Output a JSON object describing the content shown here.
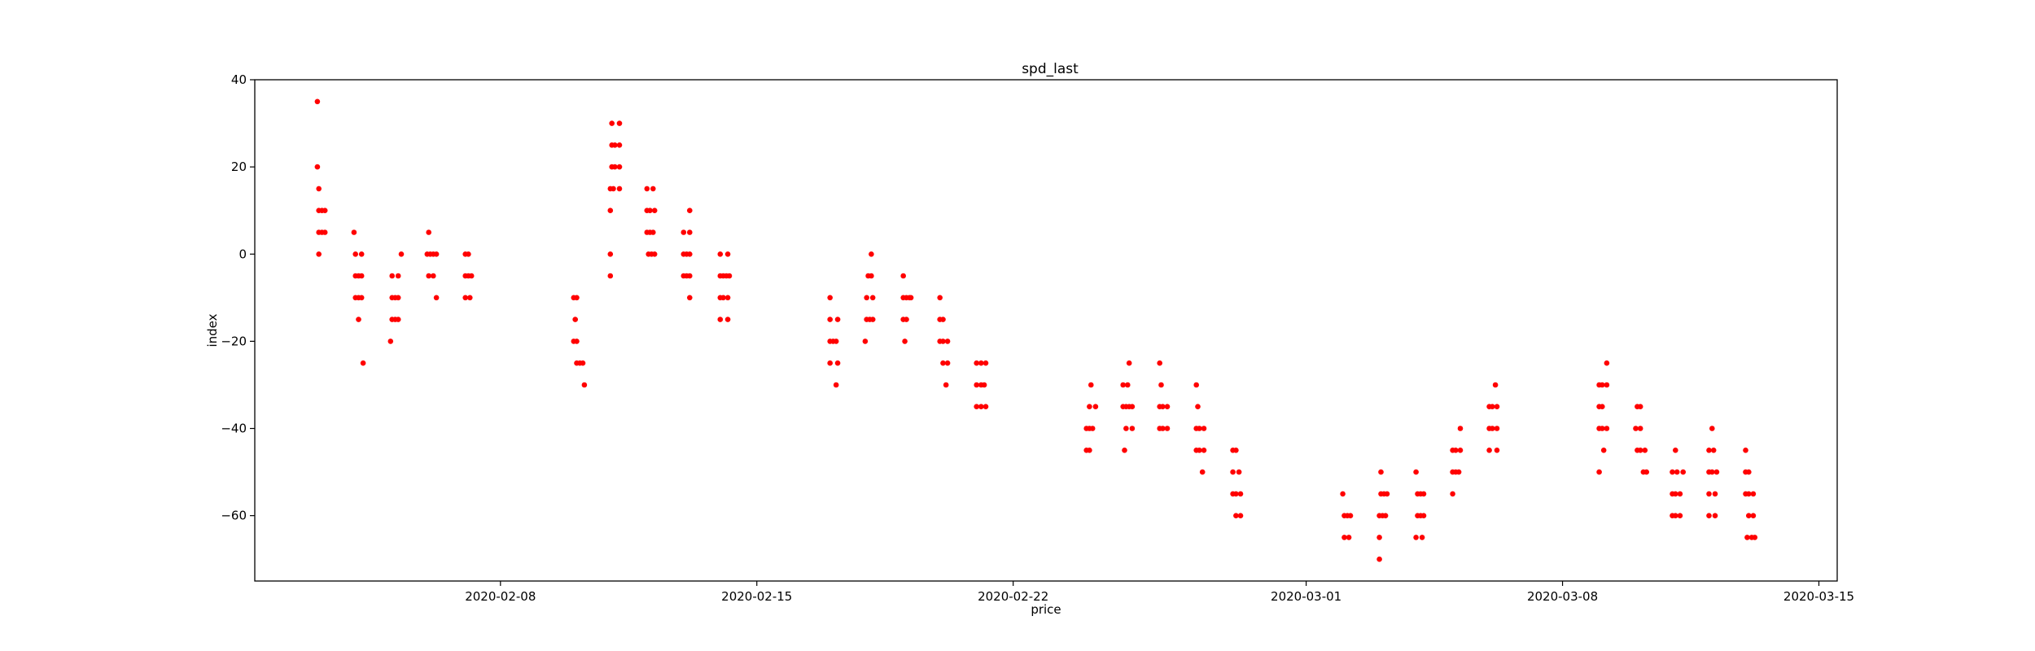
{
  "chart_data": {
    "type": "scatter",
    "title": "spd_last",
    "xlabel": "price",
    "ylabel": "index",
    "x_type": "date",
    "xlim": [
      "2020-02-01T07:00",
      "2020-03-15T12:00"
    ],
    "ylim": [
      -75,
      40
    ],
    "x_ticks": [
      "2020-02-08",
      "2020-02-15",
      "2020-02-22",
      "2020-03-01",
      "2020-03-08",
      "2020-03-15"
    ],
    "y_ticks": [
      40,
      20,
      0,
      -20,
      -40,
      -60
    ],
    "grid": false,
    "legend": "none",
    "marker_color": "#ff0000",
    "points": [
      {
        "x": "2020-02-03T00:00",
        "y": 35
      },
      {
        "x": "2020-02-03T00:00",
        "y": 20
      },
      {
        "x": "2020-02-03T01:00",
        "y": 15
      },
      {
        "x": "2020-02-03T01:00",
        "y": 10
      },
      {
        "x": "2020-02-03T03:00",
        "y": 10
      },
      {
        "x": "2020-02-03T05:00",
        "y": 10
      },
      {
        "x": "2020-02-03T01:00",
        "y": 5
      },
      {
        "x": "2020-02-03T03:00",
        "y": 5
      },
      {
        "x": "2020-02-03T05:00",
        "y": 5
      },
      {
        "x": "2020-02-03T01:00",
        "y": 0
      },
      {
        "x": "2020-02-04T00:00",
        "y": 5
      },
      {
        "x": "2020-02-04T01:00",
        "y": 0
      },
      {
        "x": "2020-02-04T05:00",
        "y": 0
      },
      {
        "x": "2020-02-04T01:00",
        "y": -5
      },
      {
        "x": "2020-02-04T03:00",
        "y": -5
      },
      {
        "x": "2020-02-04T05:00",
        "y": -5
      },
      {
        "x": "2020-02-04T01:00",
        "y": -10
      },
      {
        "x": "2020-02-04T03:00",
        "y": -10
      },
      {
        "x": "2020-02-04T05:00",
        "y": -10
      },
      {
        "x": "2020-02-04T03:00",
        "y": -15
      },
      {
        "x": "2020-02-04T06:00",
        "y": -25
      },
      {
        "x": "2020-02-05T01:00",
        "y": -5
      },
      {
        "x": "2020-02-05T05:00",
        "y": -5
      },
      {
        "x": "2020-02-05T07:00",
        "y": 0
      },
      {
        "x": "2020-02-05T01:00",
        "y": -10
      },
      {
        "x": "2020-02-05T03:00",
        "y": -10
      },
      {
        "x": "2020-02-05T05:00",
        "y": -10
      },
      {
        "x": "2020-02-05T01:00",
        "y": -15
      },
      {
        "x": "2020-02-05T03:00",
        "y": -15
      },
      {
        "x": "2020-02-05T05:00",
        "y": -15
      },
      {
        "x": "2020-02-05T00:00",
        "y": -20
      },
      {
        "x": "2020-02-06T01:00",
        "y": 5
      },
      {
        "x": "2020-02-06T00:00",
        "y": 0
      },
      {
        "x": "2020-02-06T02:00",
        "y": 0
      },
      {
        "x": "2020-02-06T04:00",
        "y": 0
      },
      {
        "x": "2020-02-06T06:00",
        "y": 0
      },
      {
        "x": "2020-02-06T01:00",
        "y": -5
      },
      {
        "x": "2020-02-06T04:00",
        "y": -5
      },
      {
        "x": "2020-02-06T06:00",
        "y": -10
      },
      {
        "x": "2020-02-07T01:00",
        "y": 0
      },
      {
        "x": "2020-02-07T03:00",
        "y": 0
      },
      {
        "x": "2020-02-07T01:00",
        "y": -5
      },
      {
        "x": "2020-02-07T03:00",
        "y": -5
      },
      {
        "x": "2020-02-07T05:00",
        "y": -5
      },
      {
        "x": "2020-02-07T01:00",
        "y": -10
      },
      {
        "x": "2020-02-07T04:00",
        "y": -10
      },
      {
        "x": "2020-02-10T00:00",
        "y": -10
      },
      {
        "x": "2020-02-10T02:00",
        "y": -10
      },
      {
        "x": "2020-02-10T01:00",
        "y": -15
      },
      {
        "x": "2020-02-10T00:00",
        "y": -20
      },
      {
        "x": "2020-02-10T02:00",
        "y": -20
      },
      {
        "x": "2020-02-10T02:00",
        "y": -25
      },
      {
        "x": "2020-02-10T04:00",
        "y": -25
      },
      {
        "x": "2020-02-10T06:00",
        "y": -25
      },
      {
        "x": "2020-02-10T07:00",
        "y": -30
      },
      {
        "x": "2020-02-11T01:00",
        "y": 30
      },
      {
        "x": "2020-02-11T06:00",
        "y": 30
      },
      {
        "x": "2020-02-11T01:00",
        "y": 25
      },
      {
        "x": "2020-02-11T03:00",
        "y": 25
      },
      {
        "x": "2020-02-11T06:00",
        "y": 25
      },
      {
        "x": "2020-02-11T01:00",
        "y": 20
      },
      {
        "x": "2020-02-11T03:00",
        "y": 20
      },
      {
        "x": "2020-02-11T06:00",
        "y": 20
      },
      {
        "x": "2020-02-11T00:00",
        "y": 15
      },
      {
        "x": "2020-02-11T02:00",
        "y": 15
      },
      {
        "x": "2020-02-11T06:00",
        "y": 15
      },
      {
        "x": "2020-02-11T00:00",
        "y": 10
      },
      {
        "x": "2020-02-11T00:00",
        "y": 0
      },
      {
        "x": "2020-02-11T00:00",
        "y": -5
      },
      {
        "x": "2020-02-12T00:00",
        "y": 15
      },
      {
        "x": "2020-02-12T04:00",
        "y": 15
      },
      {
        "x": "2020-02-12T00:00",
        "y": 10
      },
      {
        "x": "2020-02-12T02:00",
        "y": 10
      },
      {
        "x": "2020-02-12T05:00",
        "y": 10
      },
      {
        "x": "2020-02-12T00:00",
        "y": 5
      },
      {
        "x": "2020-02-12T02:00",
        "y": 5
      },
      {
        "x": "2020-02-12T04:00",
        "y": 5
      },
      {
        "x": "2020-02-12T01:00",
        "y": 0
      },
      {
        "x": "2020-02-12T03:00",
        "y": 0
      },
      {
        "x": "2020-02-12T05:00",
        "y": 0
      },
      {
        "x": "2020-02-13T00:00",
        "y": 5
      },
      {
        "x": "2020-02-13T04:00",
        "y": 5
      },
      {
        "x": "2020-02-13T04:00",
        "y": 10
      },
      {
        "x": "2020-02-13T00:00",
        "y": 0
      },
      {
        "x": "2020-02-13T02:00",
        "y": 0
      },
      {
        "x": "2020-02-13T04:00",
        "y": 0
      },
      {
        "x": "2020-02-13T00:00",
        "y": -5
      },
      {
        "x": "2020-02-13T02:00",
        "y": -5
      },
      {
        "x": "2020-02-13T04:00",
        "y": -5
      },
      {
        "x": "2020-02-13T04:00",
        "y": -10
      },
      {
        "x": "2020-02-14T00:00",
        "y": 0
      },
      {
        "x": "2020-02-14T05:00",
        "y": 0
      },
      {
        "x": "2020-02-14T00:00",
        "y": -5
      },
      {
        "x": "2020-02-14T02:00",
        "y": -5
      },
      {
        "x": "2020-02-14T04:00",
        "y": -5
      },
      {
        "x": "2020-02-14T06:00",
        "y": -5
      },
      {
        "x": "2020-02-14T00:00",
        "y": -10
      },
      {
        "x": "2020-02-14T02:00",
        "y": -10
      },
      {
        "x": "2020-02-14T05:00",
        "y": -10
      },
      {
        "x": "2020-02-14T00:00",
        "y": -15
      },
      {
        "x": "2020-02-14T05:00",
        "y": -15
      },
      {
        "x": "2020-02-17T00:00",
        "y": -10
      },
      {
        "x": "2020-02-17T00:00",
        "y": -15
      },
      {
        "x": "2020-02-17T05:00",
        "y": -15
      },
      {
        "x": "2020-02-17T00:00",
        "y": -20
      },
      {
        "x": "2020-02-17T02:00",
        "y": -20
      },
      {
        "x": "2020-02-17T04:00",
        "y": -20
      },
      {
        "x": "2020-02-17T00:00",
        "y": -25
      },
      {
        "x": "2020-02-17T05:00",
        "y": -25
      },
      {
        "x": "2020-02-17T04:00",
        "y": -30
      },
      {
        "x": "2020-02-18T03:00",
        "y": 0
      },
      {
        "x": "2020-02-18T01:00",
        "y": -5
      },
      {
        "x": "2020-02-18T03:00",
        "y": -5
      },
      {
        "x": "2020-02-18T00:00",
        "y": -10
      },
      {
        "x": "2020-02-18T04:00",
        "y": -10
      },
      {
        "x": "2020-02-18T00:00",
        "y": -15
      },
      {
        "x": "2020-02-18T02:00",
        "y": -15
      },
      {
        "x": "2020-02-18T04:00",
        "y": -15
      },
      {
        "x": "2020-02-17T23:00",
        "y": -20
      },
      {
        "x": "2020-02-19T00:00",
        "y": -5
      },
      {
        "x": "2020-02-19T00:00",
        "y": -10
      },
      {
        "x": "2020-02-19T02:00",
        "y": -10
      },
      {
        "x": "2020-02-19T04:00",
        "y": -10
      },
      {
        "x": "2020-02-19T05:00",
        "y": -10
      },
      {
        "x": "2020-02-19T00:00",
        "y": -15
      },
      {
        "x": "2020-02-19T02:00",
        "y": -15
      },
      {
        "x": "2020-02-19T01:00",
        "y": -20
      },
      {
        "x": "2020-02-20T00:00",
        "y": -10
      },
      {
        "x": "2020-02-20T00:00",
        "y": -15
      },
      {
        "x": "2020-02-20T02:00",
        "y": -15
      },
      {
        "x": "2020-02-20T00:00",
        "y": -20
      },
      {
        "x": "2020-02-20T02:00",
        "y": -20
      },
      {
        "x": "2020-02-20T05:00",
        "y": -20
      },
      {
        "x": "2020-02-20T02:00",
        "y": -25
      },
      {
        "x": "2020-02-20T05:00",
        "y": -25
      },
      {
        "x": "2020-02-20T04:00",
        "y": -30
      },
      {
        "x": "2020-02-21T00:00",
        "y": -25
      },
      {
        "x": "2020-02-21T03:00",
        "y": -25
      },
      {
        "x": "2020-02-21T06:00",
        "y": -25
      },
      {
        "x": "2020-02-21T00:00",
        "y": -30
      },
      {
        "x": "2020-02-21T03:00",
        "y": -30
      },
      {
        "x": "2020-02-21T05:00",
        "y": -30
      },
      {
        "x": "2020-02-21T00:00",
        "y": -35
      },
      {
        "x": "2020-02-21T03:00",
        "y": -35
      },
      {
        "x": "2020-02-21T06:00",
        "y": -35
      },
      {
        "x": "2020-02-24T02:00",
        "y": -35
      },
      {
        "x": "2020-02-24T06:00",
        "y": -35
      },
      {
        "x": "2020-02-24T03:00",
        "y": -30
      },
      {
        "x": "2020-02-24T00:00",
        "y": -40
      },
      {
        "x": "2020-02-24T02:00",
        "y": -40
      },
      {
        "x": "2020-02-24T04:00",
        "y": -40
      },
      {
        "x": "2020-02-24T00:00",
        "y": -45
      },
      {
        "x": "2020-02-24T02:00",
        "y": -45
      },
      {
        "x": "2020-02-25T00:00",
        "y": -30
      },
      {
        "x": "2020-02-25T03:00",
        "y": -30
      },
      {
        "x": "2020-02-25T04:00",
        "y": -25
      },
      {
        "x": "2020-02-25T00:00",
        "y": -35
      },
      {
        "x": "2020-02-25T02:00",
        "y": -35
      },
      {
        "x": "2020-02-25T04:00",
        "y": -35
      },
      {
        "x": "2020-02-25T06:00",
        "y": -35
      },
      {
        "x": "2020-02-25T02:00",
        "y": -40
      },
      {
        "x": "2020-02-25T06:00",
        "y": -40
      },
      {
        "x": "2020-02-25T01:00",
        "y": -45
      },
      {
        "x": "2020-02-26T01:00",
        "y": -30
      },
      {
        "x": "2020-02-26T00:00",
        "y": -25
      },
      {
        "x": "2020-02-26T00:00",
        "y": -35
      },
      {
        "x": "2020-02-26T02:00",
        "y": -35
      },
      {
        "x": "2020-02-26T05:00",
        "y": -35
      },
      {
        "x": "2020-02-26T00:00",
        "y": -40
      },
      {
        "x": "2020-02-26T02:00",
        "y": -40
      },
      {
        "x": "2020-02-26T05:00",
        "y": -40
      },
      {
        "x": "2020-02-27T00:00",
        "y": -30
      },
      {
        "x": "2020-02-27T01:00",
        "y": -35
      },
      {
        "x": "2020-02-27T00:00",
        "y": -40
      },
      {
        "x": "2020-02-27T02:00",
        "y": -40
      },
      {
        "x": "2020-02-27T05:00",
        "y": -40
      },
      {
        "x": "2020-02-27T00:00",
        "y": -45
      },
      {
        "x": "2020-02-27T02:00",
        "y": -45
      },
      {
        "x": "2020-02-27T05:00",
        "y": -45
      },
      {
        "x": "2020-02-27T04:00",
        "y": -50
      },
      {
        "x": "2020-02-28T00:00",
        "y": -45
      },
      {
        "x": "2020-02-28T02:00",
        "y": -45
      },
      {
        "x": "2020-02-28T00:00",
        "y": -50
      },
      {
        "x": "2020-02-28T04:00",
        "y": -50
      },
      {
        "x": "2020-02-28T00:00",
        "y": -55
      },
      {
        "x": "2020-02-28T02:00",
        "y": -55
      },
      {
        "x": "2020-02-28T05:00",
        "y": -55
      },
      {
        "x": "2020-02-28T02:00",
        "y": -60
      },
      {
        "x": "2020-02-28T05:00",
        "y": -60
      },
      {
        "x": "2020-03-02T00:00",
        "y": -55
      },
      {
        "x": "2020-03-02T01:00",
        "y": -60
      },
      {
        "x": "2020-03-02T03:00",
        "y": -60
      },
      {
        "x": "2020-03-02T05:00",
        "y": -60
      },
      {
        "x": "2020-03-02T01:00",
        "y": -65
      },
      {
        "x": "2020-03-02T04:00",
        "y": -65
      },
      {
        "x": "2020-03-03T01:00",
        "y": -50
      },
      {
        "x": "2020-03-03T01:00",
        "y": -55
      },
      {
        "x": "2020-03-03T03:00",
        "y": -55
      },
      {
        "x": "2020-03-03T05:00",
        "y": -55
      },
      {
        "x": "2020-03-03T00:00",
        "y": -60
      },
      {
        "x": "2020-03-03T02:00",
        "y": -60
      },
      {
        "x": "2020-03-03T04:00",
        "y": -60
      },
      {
        "x": "2020-03-03T00:00",
        "y": -65
      },
      {
        "x": "2020-03-03T00:00",
        "y": -70
      },
      {
        "x": "2020-03-04T00:00",
        "y": -50
      },
      {
        "x": "2020-03-04T01:00",
        "y": -55
      },
      {
        "x": "2020-03-04T03:00",
        "y": -55
      },
      {
        "x": "2020-03-04T05:00",
        "y": -55
      },
      {
        "x": "2020-03-04T01:00",
        "y": -60
      },
      {
        "x": "2020-03-04T03:00",
        "y": -60
      },
      {
        "x": "2020-03-04T05:00",
        "y": -60
      },
      {
        "x": "2020-03-04T00:00",
        "y": -65
      },
      {
        "x": "2020-03-04T04:00",
        "y": -65
      },
      {
        "x": "2020-03-05T00:00",
        "y": -45
      },
      {
        "x": "2020-03-05T02:00",
        "y": -45
      },
      {
        "x": "2020-03-05T05:00",
        "y": -45
      },
      {
        "x": "2020-03-05T00:00",
        "y": -50
      },
      {
        "x": "2020-03-05T02:00",
        "y": -50
      },
      {
        "x": "2020-03-05T04:00",
        "y": -50
      },
      {
        "x": "2020-03-05T05:00",
        "y": -40
      },
      {
        "x": "2020-03-05T00:00",
        "y": -55
      },
      {
        "x": "2020-03-06T00:00",
        "y": -35
      },
      {
        "x": "2020-03-06T02:00",
        "y": -35
      },
      {
        "x": "2020-03-06T05:00",
        "y": -35
      },
      {
        "x": "2020-03-06T04:00",
        "y": -30
      },
      {
        "x": "2020-03-06T00:00",
        "y": -40
      },
      {
        "x": "2020-03-06T02:00",
        "y": -40
      },
      {
        "x": "2020-03-06T05:00",
        "y": -40
      },
      {
        "x": "2020-03-06T00:00",
        "y": -45
      },
      {
        "x": "2020-03-06T05:00",
        "y": -45
      },
      {
        "x": "2020-03-09T00:00",
        "y": -30
      },
      {
        "x": "2020-03-09T02:00",
        "y": -30
      },
      {
        "x": "2020-03-09T05:00",
        "y": -30
      },
      {
        "x": "2020-03-09T05:00",
        "y": -25
      },
      {
        "x": "2020-03-09T00:00",
        "y": -35
      },
      {
        "x": "2020-03-09T02:00",
        "y": -35
      },
      {
        "x": "2020-03-09T00:00",
        "y": -40
      },
      {
        "x": "2020-03-09T02:00",
        "y": -40
      },
      {
        "x": "2020-03-09T05:00",
        "y": -40
      },
      {
        "x": "2020-03-09T03:00",
        "y": -45
      },
      {
        "x": "2020-03-09T00:00",
        "y": -50
      },
      {
        "x": "2020-03-10T01:00",
        "y": -35
      },
      {
        "x": "2020-03-10T03:00",
        "y": -35
      },
      {
        "x": "2020-03-10T00:00",
        "y": -40
      },
      {
        "x": "2020-03-10T03:00",
        "y": -40
      },
      {
        "x": "2020-03-10T01:00",
        "y": -45
      },
      {
        "x": "2020-03-10T03:00",
        "y": -45
      },
      {
        "x": "2020-03-10T06:00",
        "y": -45
      },
      {
        "x": "2020-03-10T05:00",
        "y": -50
      },
      {
        "x": "2020-03-10T07:00",
        "y": -50
      },
      {
        "x": "2020-03-11T02:00",
        "y": -45
      },
      {
        "x": "2020-03-11T00:00",
        "y": -50
      },
      {
        "x": "2020-03-11T03:00",
        "y": -50
      },
      {
        "x": "2020-03-11T07:00",
        "y": -50
      },
      {
        "x": "2020-03-11T00:00",
        "y": -55
      },
      {
        "x": "2020-03-11T02:00",
        "y": -55
      },
      {
        "x": "2020-03-11T05:00",
        "y": -55
      },
      {
        "x": "2020-03-11T00:00",
        "y": -60
      },
      {
        "x": "2020-03-11T02:00",
        "y": -60
      },
      {
        "x": "2020-03-11T05:00",
        "y": -60
      },
      {
        "x": "2020-03-12T02:00",
        "y": -40
      },
      {
        "x": "2020-03-12T00:00",
        "y": -45
      },
      {
        "x": "2020-03-12T03:00",
        "y": -45
      },
      {
        "x": "2020-03-12T00:00",
        "y": -50
      },
      {
        "x": "2020-03-12T02:00",
        "y": -50
      },
      {
        "x": "2020-03-12T05:00",
        "y": -50
      },
      {
        "x": "2020-03-12T00:00",
        "y": -55
      },
      {
        "x": "2020-03-12T04:00",
        "y": -55
      },
      {
        "x": "2020-03-12T00:00",
        "y": -60
      },
      {
        "x": "2020-03-12T04:00",
        "y": -60
      },
      {
        "x": "2020-03-13T00:00",
        "y": -45
      },
      {
        "x": "2020-03-13T00:00",
        "y": -50
      },
      {
        "x": "2020-03-13T02:00",
        "y": -50
      },
      {
        "x": "2020-03-13T00:00",
        "y": -55
      },
      {
        "x": "2020-03-13T02:00",
        "y": -55
      },
      {
        "x": "2020-03-13T05:00",
        "y": -55
      },
      {
        "x": "2020-03-13T02:00",
        "y": -60
      },
      {
        "x": "2020-03-13T05:00",
        "y": -60
      },
      {
        "x": "2020-03-13T01:00",
        "y": -65
      },
      {
        "x": "2020-03-13T04:00",
        "y": -65
      },
      {
        "x": "2020-03-13T06:00",
        "y": -65
      }
    ]
  }
}
